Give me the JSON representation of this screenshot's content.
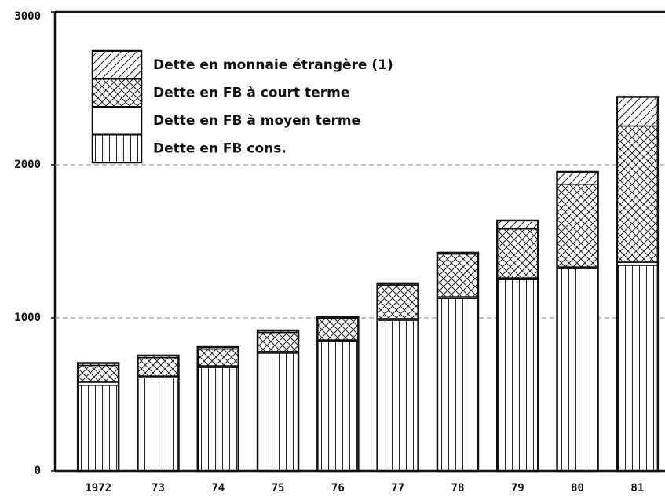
{
  "chart_data": {
    "type": "stacked_bar",
    "categories": [
      "1972",
      "73",
      "74",
      "75",
      "76",
      "77",
      "78",
      "79",
      "80",
      "81"
    ],
    "series": [
      {
        "name": "Dette en FB cons.",
        "color": "#000000",
        "values": [
          560,
          610,
          677,
          770,
          846,
          985,
          1128,
          1251,
          1323,
          1344
        ]
      },
      {
        "name": "Dette en FB à moyen terme",
        "color": "#000000",
        "values": [
          20,
          10,
          10,
          10,
          10,
          10,
          10,
          10,
          10,
          20
        ]
      },
      {
        "name": "Dette en FB à court terme",
        "color": "#000000",
        "values": [
          110,
          120,
          110,
          125,
          140,
          220,
          280,
          320,
          540,
          890
        ]
      },
      {
        "name": "Dette en monnaie étrangère (1)",
        "color": "#000000",
        "values": [
          15,
          14,
          13,
          13,
          9,
          11,
          8,
          55,
          81,
          190
        ]
      }
    ],
    "ylim": [
      0,
      3000
    ],
    "yticks": [
      0,
      1000,
      2000,
      3000
    ],
    "grid": true
  }
}
